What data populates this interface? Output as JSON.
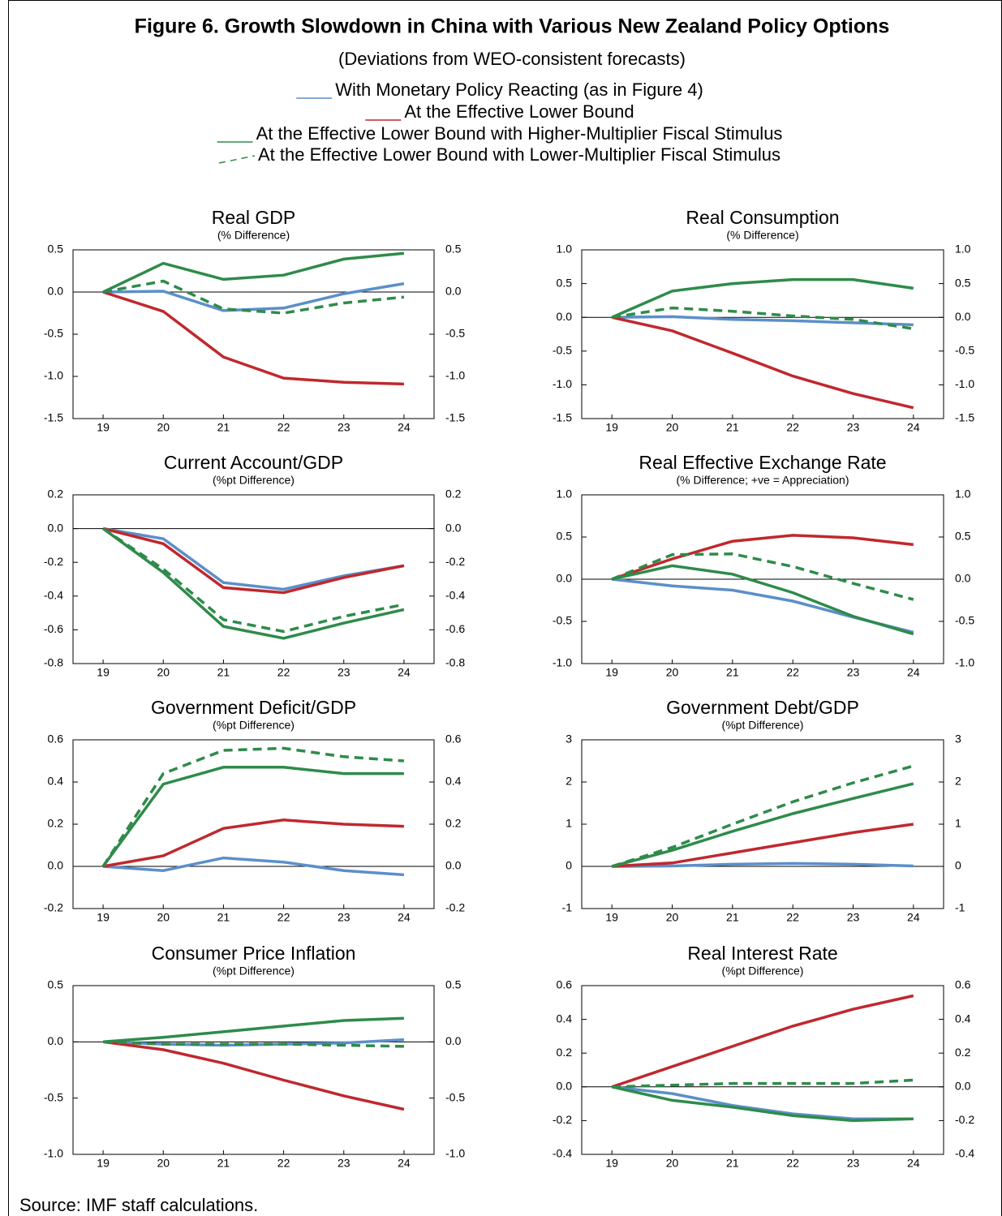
{
  "figure": {
    "title": "Figure 6. Growth Slowdown in China with Various New Zealand Policy Options",
    "subtitle": "(Deviations from WEO-consistent forecasts)",
    "title_color": "#4a7fb5",
    "source": "Source: IMF staff calculations."
  },
  "chart_data": [
    {
      "type": "line",
      "title": "Real GDP",
      "subtitle": "(% Difference)",
      "x": [
        19,
        20,
        21,
        22,
        23,
        24
      ],
      "xlim": [
        18.5,
        24.5
      ],
      "xticks": [
        19,
        20,
        21,
        22,
        23,
        24
      ],
      "ylim": [
        -1.5,
        0.5
      ],
      "yticks": [
        {
          "value": -1.5,
          "label": "-1.5"
        },
        {
          "value": -1,
          "label": "-1.0"
        },
        -0.5,
        {
          "value": 0,
          "label": "0.0"
        },
        0.5
      ],
      "zero_line": true,
      "series": [
        {
          "name": "With Monetary Policy Reacting (as in Figure 4)",
          "color": "#5b8fc9",
          "dash": false,
          "values": [
            0,
            0.01,
            -0.22,
            -0.19,
            -0.02,
            0.1
          ]
        },
        {
          "name": "At the Effective Lower Bound",
          "color": "#c0282d",
          "dash": false,
          "values": [
            0,
            -0.23,
            -0.77,
            -1.02,
            -1.07,
            -1.09
          ]
        },
        {
          "name": "At the Effective Lower Bound with Higher-Multiplier Fiscal Stimulus",
          "color": "#2e8b4a",
          "dash": false,
          "values": [
            0,
            0.34,
            0.15,
            0.2,
            0.39,
            0.46
          ]
        },
        {
          "name": "At the Effective Lower Bound with Lower-Multiplier Fiscal Stimulus",
          "color": "#2e8b4a",
          "dash": true,
          "values": [
            0,
            0.13,
            -0.2,
            -0.25,
            -0.13,
            -0.06
          ]
        }
      ]
    },
    {
      "type": "line",
      "title": "Real Consumption",
      "subtitle": "(% Difference)",
      "x": [
        19,
        20,
        21,
        22,
        23,
        24
      ],
      "xlim": [
        18.5,
        24.5
      ],
      "xticks": [
        19,
        20,
        21,
        22,
        23,
        24
      ],
      "ylim": [
        -1.5,
        1
      ],
      "yticks": [
        {
          "value": -1.5,
          "label": "-1.5"
        },
        {
          "value": -1,
          "label": "-1.0"
        },
        -0.5,
        {
          "value": 0,
          "label": "0.0"
        },
        0.5,
        {
          "value": 1,
          "label": "1.0"
        }
      ],
      "zero_line": true,
      "series": [
        {
          "name": "With Monetary Policy Reacting (as in Figure 4)",
          "color": "#5b8fc9",
          "dash": false,
          "values": [
            0,
            0.01,
            -0.03,
            -0.05,
            -0.08,
            -0.11
          ]
        },
        {
          "name": "At the Effective Lower Bound",
          "color": "#c0282d",
          "dash": false,
          "values": [
            0,
            -0.2,
            -0.53,
            -0.87,
            -1.13,
            -1.34
          ]
        },
        {
          "name": "At the Effective Lower Bound with Higher-Multiplier Fiscal Stimulus",
          "color": "#2e8b4a",
          "dash": false,
          "values": [
            0,
            0.39,
            0.5,
            0.56,
            0.56,
            0.43
          ]
        },
        {
          "name": "At the Effective Lower Bound with Lower-Multiplier Fiscal Stimulus",
          "color": "#2e8b4a",
          "dash": true,
          "values": [
            0,
            0.14,
            0.09,
            0.02,
            -0.03,
            -0.17
          ]
        }
      ]
    },
    {
      "type": "line",
      "title": "Current Account/GDP",
      "subtitle": "(%pt Difference)",
      "x": [
        19,
        20,
        21,
        22,
        23,
        24
      ],
      "xlim": [
        18.5,
        24.5
      ],
      "xticks": [
        19,
        20,
        21,
        22,
        23,
        24
      ],
      "ylim": [
        -0.8,
        0.2
      ],
      "yticks": [
        -0.8,
        -0.6,
        -0.4,
        -0.2,
        {
          "value": 0,
          "label": "0.0"
        },
        0.2
      ],
      "zero_line": true,
      "series": [
        {
          "name": "With Monetary Policy Reacting (as in Figure 4)",
          "color": "#5b8fc9",
          "dash": false,
          "values": [
            0,
            -0.06,
            -0.32,
            -0.36,
            -0.28,
            -0.22
          ]
        },
        {
          "name": "At the Effective Lower Bound",
          "color": "#c0282d",
          "dash": false,
          "values": [
            0,
            -0.09,
            -0.35,
            -0.38,
            -0.29,
            -0.22
          ]
        },
        {
          "name": "At the Effective Lower Bound with Higher-Multiplier Fiscal Stimulus",
          "color": "#2e8b4a",
          "dash": false,
          "values": [
            0,
            -0.26,
            -0.58,
            -0.65,
            -0.56,
            -0.48
          ]
        },
        {
          "name": "At the Effective Lower Bound with Lower-Multiplier Fiscal Stimulus",
          "color": "#2e8b4a",
          "dash": true,
          "values": [
            0,
            -0.24,
            -0.54,
            -0.61,
            -0.52,
            -0.45
          ]
        }
      ]
    },
    {
      "type": "line",
      "title": "Real Effective Exchange Rate",
      "subtitle": "(% Difference; +ve = Appreciation)",
      "x": [
        19,
        20,
        21,
        22,
        23,
        24
      ],
      "xlim": [
        18.5,
        24.5
      ],
      "xticks": [
        19,
        20,
        21,
        22,
        23,
        24
      ],
      "ylim": [
        -1,
        1
      ],
      "yticks": [
        {
          "value": -1,
          "label": "-1.0"
        },
        -0.5,
        {
          "value": 0,
          "label": "0.0"
        },
        0.5,
        {
          "value": 1,
          "label": "1.0"
        }
      ],
      "zero_line": true,
      "series": [
        {
          "name": "With Monetary Policy Reacting (as in Figure 4)",
          "color": "#5b8fc9",
          "dash": false,
          "values": [
            0,
            -0.08,
            -0.13,
            -0.26,
            -0.45,
            -0.63
          ]
        },
        {
          "name": "At the Effective Lower Bound",
          "color": "#c0282d",
          "dash": false,
          "values": [
            0,
            0.24,
            0.45,
            0.52,
            0.49,
            0.41
          ]
        },
        {
          "name": "At the Effective Lower Bound with Higher-Multiplier Fiscal Stimulus",
          "color": "#2e8b4a",
          "dash": false,
          "values": [
            0,
            0.16,
            0.06,
            -0.16,
            -0.44,
            -0.65
          ]
        },
        {
          "name": "At the Effective Lower Bound with Lower-Multiplier Fiscal Stimulus",
          "color": "#2e8b4a",
          "dash": true,
          "values": [
            0,
            0.29,
            0.3,
            0.15,
            -0.05,
            -0.24
          ]
        }
      ]
    },
    {
      "type": "line",
      "title": "Government Deficit/GDP",
      "subtitle": "(%pt Difference)",
      "x": [
        19,
        20,
        21,
        22,
        23,
        24
      ],
      "xlim": [
        18.5,
        24.5
      ],
      "xticks": [
        19,
        20,
        21,
        22,
        23,
        24
      ],
      "ylim": [
        -0.2,
        0.6
      ],
      "yticks": [
        -0.2,
        {
          "value": 0,
          "label": "0.0"
        },
        0.2,
        0.4,
        0.6
      ],
      "zero_line": true,
      "series": [
        {
          "name": "With Monetary Policy Reacting (as in Figure 4)",
          "color": "#5b8fc9",
          "dash": false,
          "values": [
            0,
            -0.02,
            0.04,
            0.02,
            -0.02,
            -0.04
          ]
        },
        {
          "name": "At the Effective Lower Bound",
          "color": "#c0282d",
          "dash": false,
          "values": [
            0,
            0.05,
            0.18,
            0.22,
            0.2,
            0.19
          ]
        },
        {
          "name": "At the Effective Lower Bound with Higher-Multiplier Fiscal Stimulus",
          "color": "#2e8b4a",
          "dash": false,
          "values": [
            0,
            0.39,
            0.47,
            0.47,
            0.44,
            0.44
          ]
        },
        {
          "name": "At the Effective Lower Bound with Lower-Multiplier Fiscal Stimulus",
          "color": "#2e8b4a",
          "dash": true,
          "values": [
            0,
            0.44,
            0.55,
            0.56,
            0.52,
            0.5
          ]
        }
      ]
    },
    {
      "type": "line",
      "title": "Government Debt/GDP",
      "subtitle": "(%pt Difference)",
      "x": [
        19,
        20,
        21,
        22,
        23,
        24
      ],
      "xlim": [
        18.5,
        24.5
      ],
      "xticks": [
        19,
        20,
        21,
        22,
        23,
        24
      ],
      "ylim": [
        -1,
        3
      ],
      "yticks": [
        -1,
        0,
        1,
        2,
        3
      ],
      "zero_line": true,
      "series": [
        {
          "name": "With Monetary Policy Reacting (as in Figure 4)",
          "color": "#5b8fc9",
          "dash": false,
          "values": [
            0,
            0.01,
            0.05,
            0.07,
            0.05,
            0.01
          ]
        },
        {
          "name": "At the Effective Lower Bound",
          "color": "#c0282d",
          "dash": false,
          "values": [
            0,
            0.08,
            0.32,
            0.56,
            0.8,
            1
          ]
        },
        {
          "name": "At the Effective Lower Bound with Higher-Multiplier Fiscal Stimulus",
          "color": "#2e8b4a",
          "dash": false,
          "values": [
            0,
            0.38,
            0.83,
            1.25,
            1.61,
            1.96
          ]
        },
        {
          "name": "At the Effective Lower Bound with Lower-Multiplier Fiscal Stimulus",
          "color": "#2e8b4a",
          "dash": true,
          "values": [
            0,
            0.45,
            1,
            1.53,
            1.98,
            2.38
          ]
        }
      ]
    },
    {
      "type": "line",
      "title": "Consumer Price Inflation",
      "subtitle": "(%pt Difference)",
      "x": [
        19,
        20,
        21,
        22,
        23,
        24
      ],
      "xlim": [
        18.5,
        24.5
      ],
      "xticks": [
        19,
        20,
        21,
        22,
        23,
        24
      ],
      "ylim": [
        -1,
        0.5
      ],
      "yticks": [
        {
          "value": -1,
          "label": "-1.0"
        },
        -0.5,
        {
          "value": 0,
          "label": "0.0"
        },
        0.5
      ],
      "zero_line": true,
      "series": [
        {
          "name": "With Monetary Policy Reacting (as in Figure 4)",
          "color": "#5b8fc9",
          "dash": false,
          "values": [
            0,
            -0.02,
            -0.03,
            -0.02,
            -0.01,
            0.02
          ]
        },
        {
          "name": "At the Effective Lower Bound",
          "color": "#c0282d",
          "dash": false,
          "values": [
            0,
            -0.07,
            -0.19,
            -0.34,
            -0.48,
            -0.6
          ]
        },
        {
          "name": "At the Effective Lower Bound with Higher-Multiplier Fiscal Stimulus",
          "color": "#2e8b4a",
          "dash": false,
          "values": [
            0,
            0.04,
            0.09,
            0.14,
            0.19,
            0.21
          ]
        },
        {
          "name": "At the Effective Lower Bound with Lower-Multiplier Fiscal Stimulus",
          "color": "#2e8b4a",
          "dash": true,
          "values": [
            0,
            -0.02,
            -0.02,
            -0.02,
            -0.03,
            -0.04
          ]
        }
      ]
    },
    {
      "type": "line",
      "title": "Real Interest Rate",
      "subtitle": "(%pt Difference)",
      "x": [
        19,
        20,
        21,
        22,
        23,
        24
      ],
      "xlim": [
        18.5,
        24.5
      ],
      "xticks": [
        19,
        20,
        21,
        22,
        23,
        24
      ],
      "ylim": [
        -0.4,
        0.6
      ],
      "yticks": [
        -0.4,
        -0.2,
        {
          "value": 0,
          "label": "0.0"
        },
        0.2,
        0.4,
        0.6
      ],
      "zero_line": true,
      "series": [
        {
          "name": "With Monetary Policy Reacting (as in Figure 4)",
          "color": "#5b8fc9",
          "dash": false,
          "values": [
            0,
            -0.04,
            -0.11,
            -0.16,
            -0.19,
            -0.19
          ]
        },
        {
          "name": "At the Effective Lower Bound",
          "color": "#c0282d",
          "dash": false,
          "values": [
            0,
            0.12,
            0.24,
            0.36,
            0.46,
            0.54
          ]
        },
        {
          "name": "At the Effective Lower Bound with Higher-Multiplier Fiscal Stimulus",
          "color": "#2e8b4a",
          "dash": false,
          "values": [
            0,
            -0.08,
            -0.12,
            -0.17,
            -0.2,
            -0.19
          ]
        },
        {
          "name": "At the Effective Lower Bound with Lower-Multiplier Fiscal Stimulus",
          "color": "#2e8b4a",
          "dash": true,
          "values": [
            0,
            0.01,
            0.02,
            0.02,
            0.02,
            0.04
          ]
        }
      ]
    }
  ]
}
